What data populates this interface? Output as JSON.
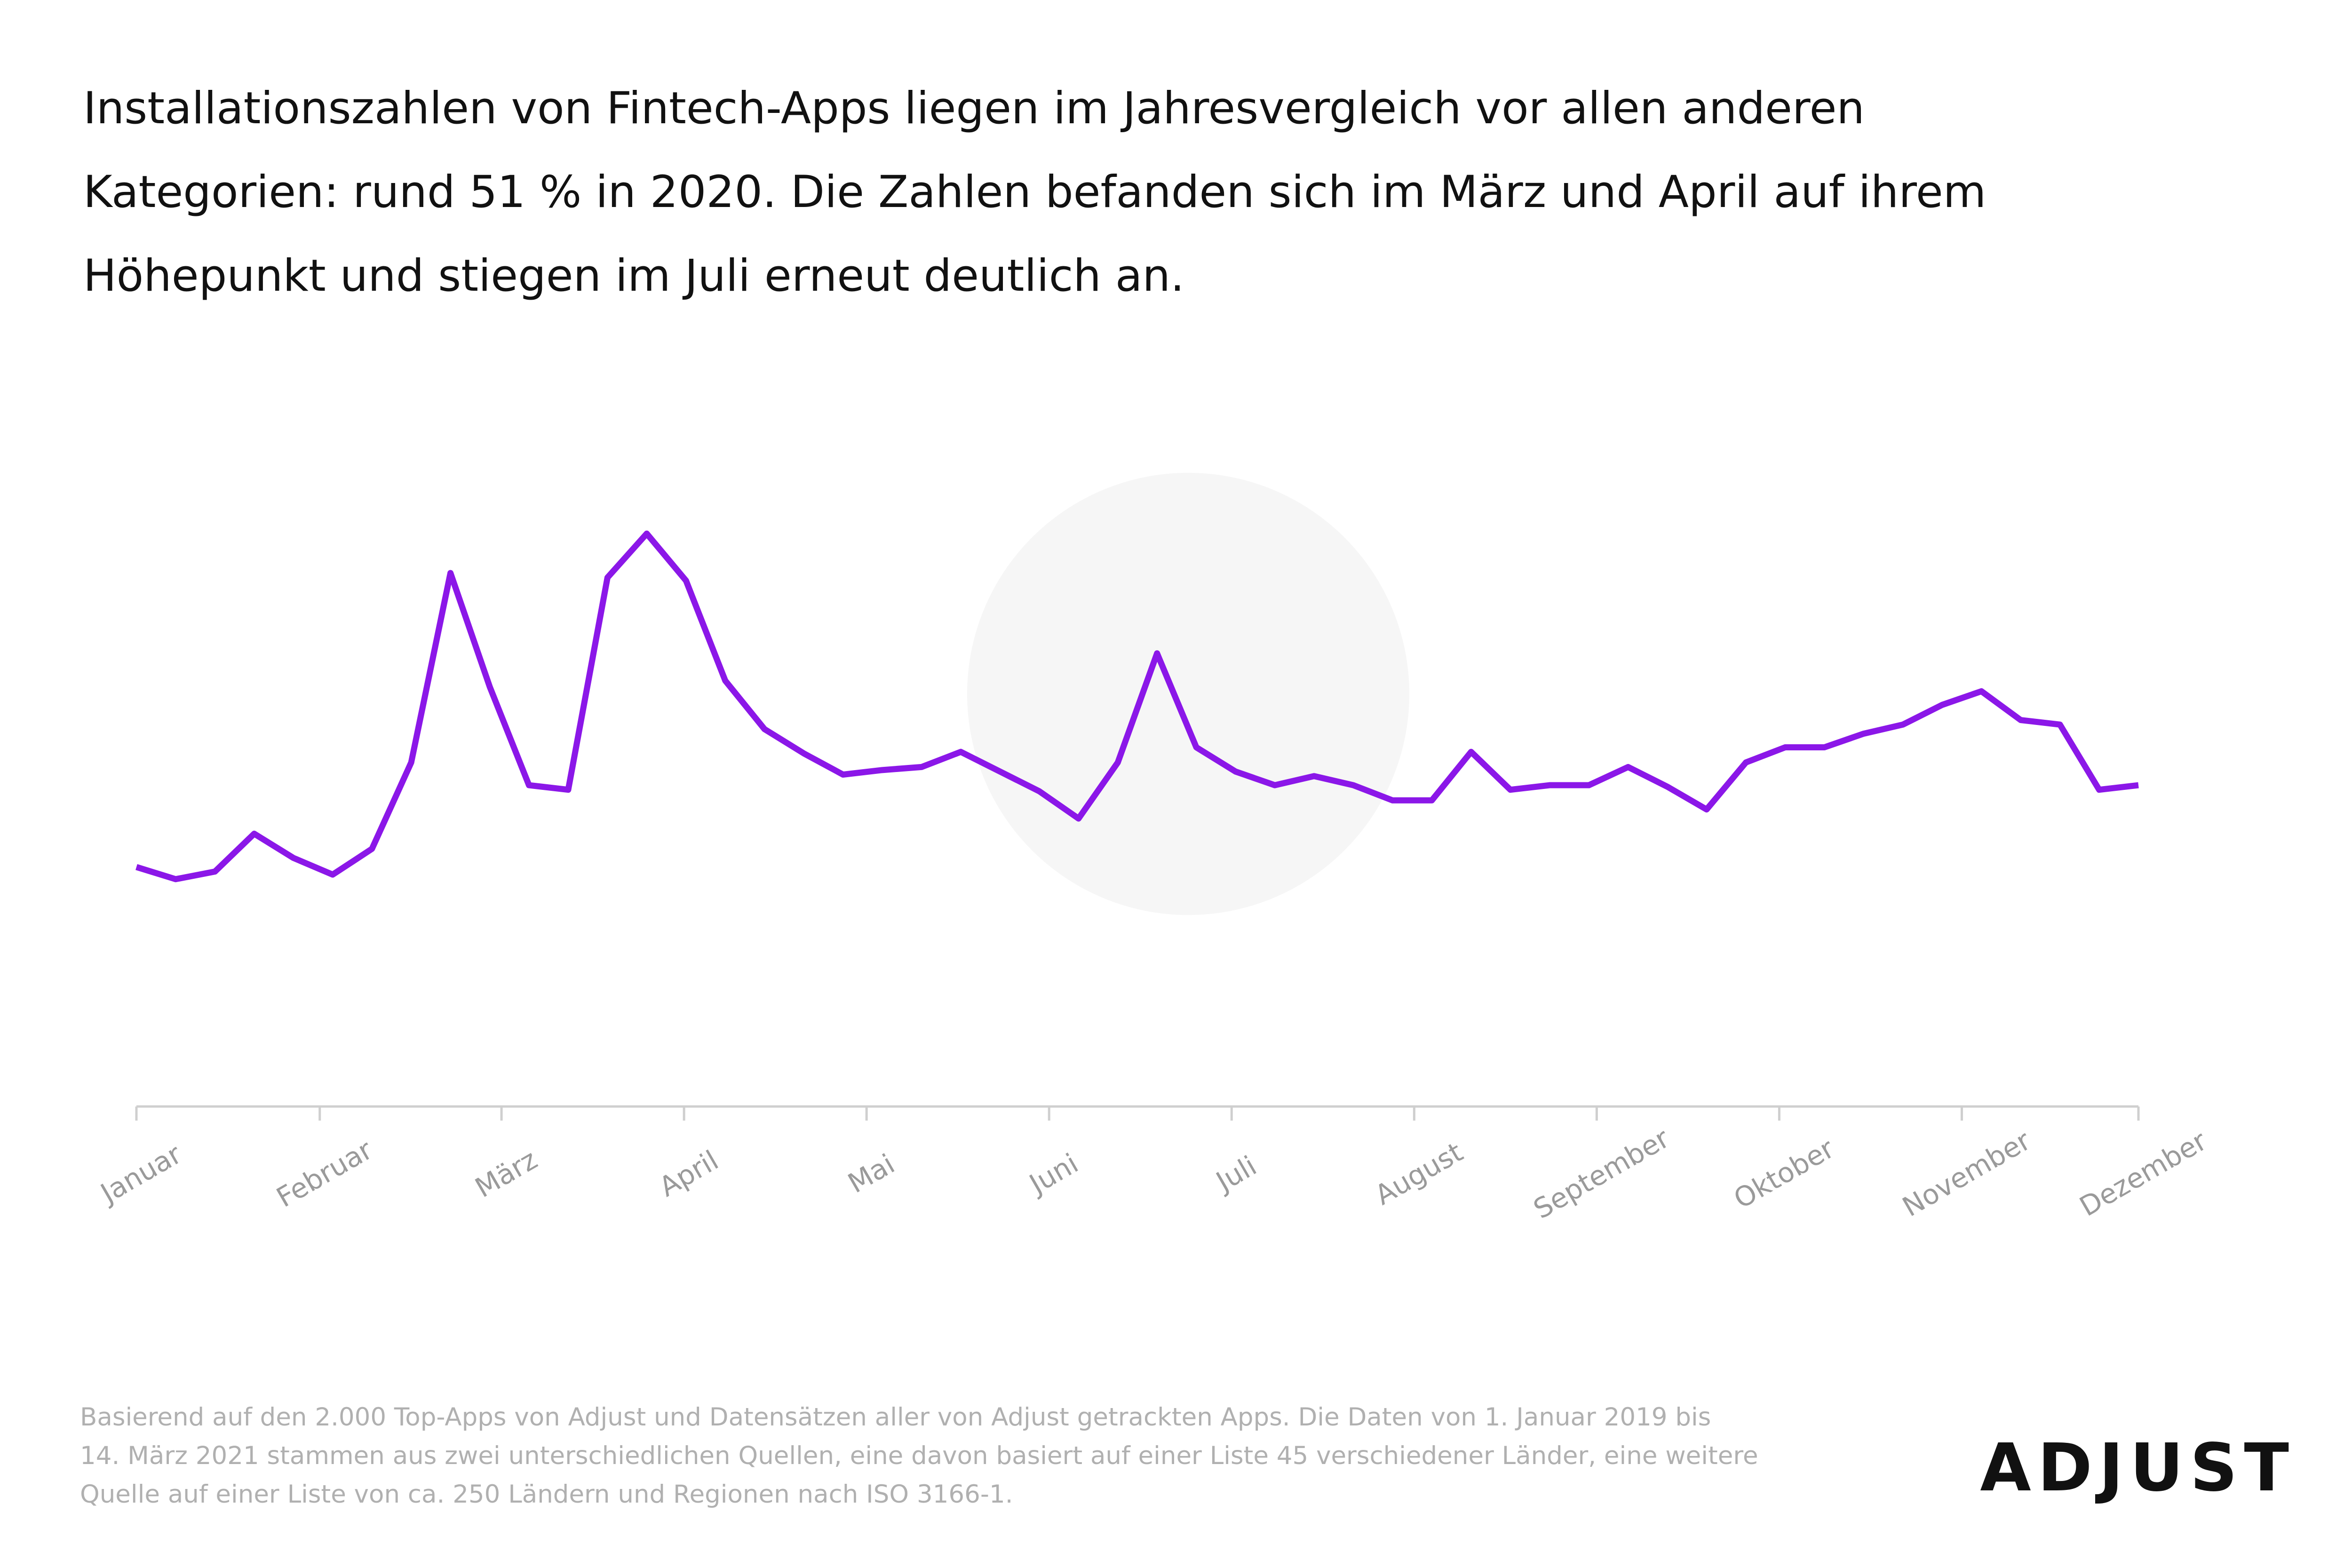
{
  "chart_data": {
    "type": "line",
    "title": [
      "Installationszahlen von Fintech-Apps liegen im Jahresvergleich vor allen anderen",
      "Kategorien: rund 51 % in 2020. Die Zahlen befanden sich im März und April auf ihrem",
      "Höhepunkt und stiegen im Juli erneut deutlich an."
    ],
    "footnote": [
      "Basierend auf den 2.000 Top-Apps von Adjust und Datensätzen aller von Adjust getrackten Apps. Die Daten von 1. Januar 2019 bis",
      "14. März 2021 stammen aus zwei unterschiedlichen Quellen, eine davon basiert auf einer Liste 45 verschiedener Länder, eine weitere",
      "Quelle auf einer Liste von ca. 250 Ländern und Regionen nach ISO 3166-1."
    ],
    "logo": "ADJUST",
    "x": [
      1,
      2,
      3,
      4,
      5,
      6,
      7,
      8,
      9,
      10,
      11,
      12,
      13,
      14,
      15,
      16,
      17,
      18,
      19,
      20,
      21,
      22,
      23,
      24,
      25,
      26,
      27,
      28,
      29,
      30,
      31,
      32,
      33,
      34,
      35,
      36,
      37,
      38,
      39,
      40,
      41,
      42,
      43,
      44,
      45,
      46,
      47,
      48,
      49,
      50,
      51,
      52
    ],
    "series": [
      {
        "color": "#8b17e8",
        "values": [
          158,
          150,
          155,
          180,
          164,
          153,
          170,
          227,
          352,
          277,
          212,
          209,
          349,
          378,
          347,
          281,
          249,
          233,
          219,
          222,
          224,
          234,
          221,
          208,
          190,
          227,
          299,
          237,
          221,
          212,
          218,
          212,
          202,
          202,
          234,
          209,
          212,
          212,
          224,
          211,
          196,
          227,
          237,
          237,
          246,
          252,
          265,
          274,
          255,
          252,
          209,
          212
        ]
      }
    ],
    "xlim": [
      1,
      52
    ],
    "xticks": [
      {
        "value": 1,
        "label": "Januar"
      },
      {
        "value": 5.67,
        "label": "Februar"
      },
      {
        "value": 10.3,
        "label": "März"
      },
      {
        "value": 14.95,
        "label": "April"
      },
      {
        "value": 19.6,
        "label": "Mai"
      },
      {
        "value": 24.25,
        "label": "Juni"
      },
      {
        "value": 28.9,
        "label": "Juli"
      },
      {
        "value": 33.55,
        "label": "August"
      },
      {
        "value": 38.2,
        "label": "September"
      },
      {
        "value": 42.85,
        "label": "Oktober"
      },
      {
        "value": 47.5,
        "label": "November"
      },
      {
        "value": 52,
        "label": "Dezember"
      }
    ],
    "ylim": [
      0,
      420
    ]
  }
}
